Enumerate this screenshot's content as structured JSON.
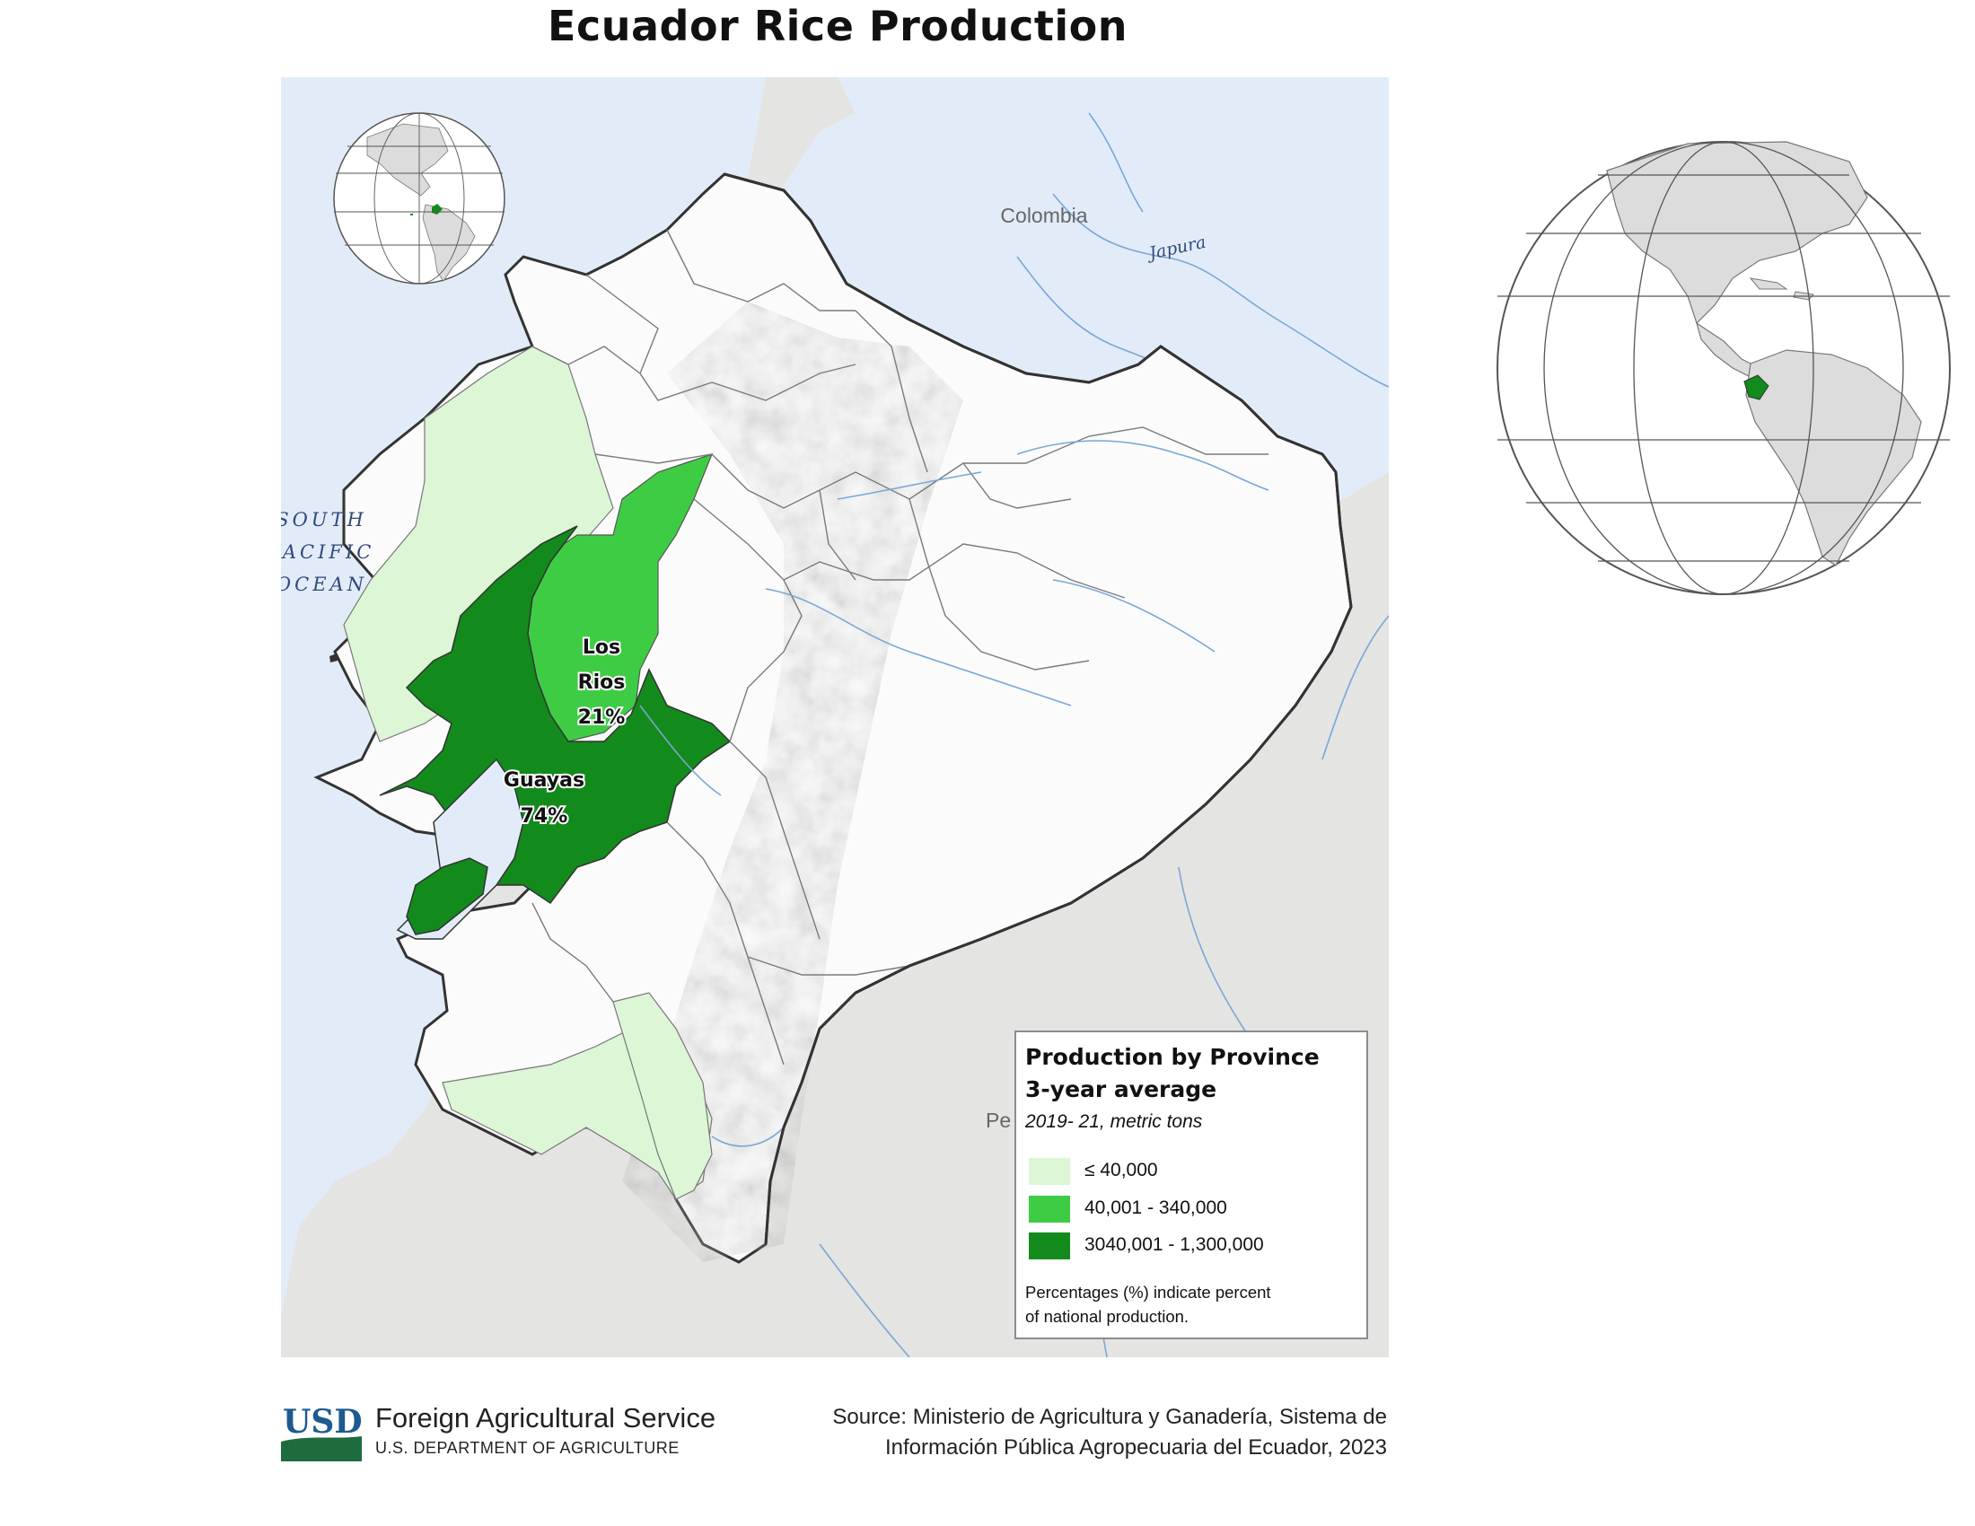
{
  "title": "Ecuador Rice Production",
  "map_labels": {
    "ocean": [
      "SOUTH",
      "PACIFIC",
      "OCEAN"
    ],
    "colombia": "Colombia",
    "river_japura": "Japura",
    "peru_partial": "Pe"
  },
  "provinces": [
    {
      "name_line1": "Los",
      "name_line2": "Rios",
      "share": "21%",
      "class": "40,001 - 340,000",
      "color": "#3fcc45"
    },
    {
      "name_line1": "Guayas",
      "name_line2": "",
      "share": "74%",
      "class": "3040,001 - 1,300,000",
      "color": "#138a1c"
    }
  ],
  "legend": {
    "title_line1": "Production by Province",
    "title_line2": "3-year average",
    "subtitle": "2019- 21, metric tons",
    "items": [
      {
        "label": "≤ 40,000",
        "color": "#dcf6d6"
      },
      {
        "label": "40,001 - 340,000",
        "color": "#3fcc45"
      },
      {
        "label": "3040,001 - 1,300,000",
        "color": "#138a1c"
      }
    ],
    "note_line1": "Percentages (%) indicate percent",
    "note_line2": "of national production."
  },
  "footer": {
    "logo": "USDA",
    "agency": "Foreign Agricultural Service",
    "department": "U.S. DEPARTMENT OF AGRICULTURE",
    "source_line1": "Source: Ministerio de Agricultura y Ganadería, Sistema de",
    "source_line2": "Información Pública Agropecuaria del Ecuador, 2023"
  },
  "colors": {
    "ocean": "#e2ecf9",
    "neighbor_land": "#e4e4e2",
    "ecuador_land": "#fbfbfb",
    "river": "#7aa6d6",
    "border": "#333333",
    "low_class": "#dcf6d6",
    "mid_class": "#3fcc45",
    "high_class": "#138a1c"
  }
}
